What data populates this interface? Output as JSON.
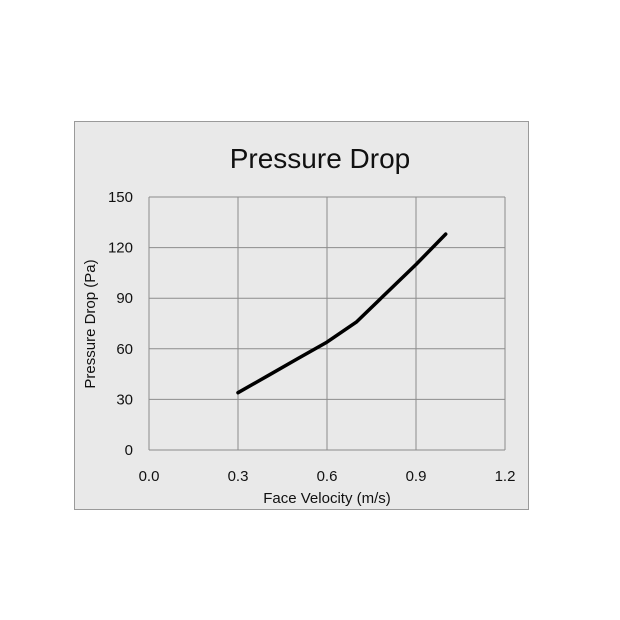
{
  "chart_data": {
    "type": "line",
    "title": "Pressure Drop",
    "xlabel": "Face Velocity (m/s)",
    "ylabel": "Pressure Drop (Pa)",
    "xlim": [
      0.0,
      1.2
    ],
    "ylim": [
      0,
      150
    ],
    "xticks": [
      "0.0",
      "0.3",
      "0.6",
      "0.9",
      "1.2"
    ],
    "yticks": [
      "0",
      "30",
      "60",
      "90",
      "120",
      "150"
    ],
    "grid": true,
    "legend": "none",
    "series": [
      {
        "x": [
          0.3,
          0.4,
          0.5,
          0.6,
          0.7,
          0.8,
          0.9,
          1.0
        ],
        "y": [
          34,
          44,
          54,
          64,
          76,
          93,
          110,
          128
        ]
      }
    ],
    "colors": {
      "line": "#000000",
      "grid": "#8c8c8c",
      "panel": "#e9e9e9"
    }
  }
}
